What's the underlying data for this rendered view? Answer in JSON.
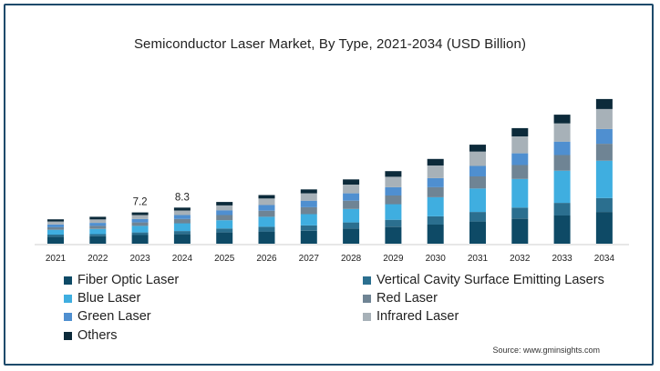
{
  "chart_data": {
    "type": "bar",
    "stacked": true,
    "title": "Semiconductor Laser Market, By Type, 2021-2034 (USD Billion)",
    "categories": [
      "2021",
      "2022",
      "2023",
      "2024",
      "2025",
      "2026",
      "2027",
      "2028",
      "2029",
      "2030",
      "2031",
      "2032",
      "2033",
      "2034"
    ],
    "series": [
      {
        "name": "Fiber Optic Laser",
        "color": "#0e4a66",
        "values": [
          1.6,
          1.7,
          2.0,
          2.2,
          2.6,
          2.8,
          3.0,
          3.5,
          3.9,
          4.4,
          5.1,
          5.8,
          6.5,
          7.3
        ]
      },
      {
        "name": "Vertical Cavity Surface Emitting Lasers",
        "color": "#2b6f8f",
        "values": [
          0.5,
          0.5,
          0.6,
          0.7,
          0.9,
          1.1,
          1.2,
          1.4,
          1.6,
          1.9,
          2.2,
          2.5,
          2.9,
          3.2
        ]
      },
      {
        "name": "Blue Laser",
        "color": "#3faee0",
        "values": [
          1.1,
          1.2,
          1.5,
          1.8,
          1.9,
          2.3,
          2.6,
          3.1,
          3.6,
          4.4,
          5.4,
          6.6,
          7.4,
          8.6
        ]
      },
      {
        "name": "Red Laser",
        "color": "#6f8494",
        "values": [
          0.6,
          0.7,
          0.8,
          1.0,
          1.2,
          1.4,
          1.6,
          1.9,
          2.0,
          2.3,
          2.8,
          3.2,
          3.6,
          3.9
        ]
      },
      {
        "name": "Green Laser",
        "color": "#4f8fd0",
        "values": [
          0.6,
          0.7,
          0.8,
          0.9,
          1.1,
          1.3,
          1.5,
          1.7,
          1.9,
          2.1,
          2.4,
          2.7,
          3.1,
          3.4
        ]
      },
      {
        "name": "Infrared Laser",
        "color": "#a7b1b8",
        "values": [
          0.7,
          0.8,
          0.9,
          1.0,
          1.1,
          1.5,
          1.7,
          2.0,
          2.4,
          2.9,
          3.3,
          3.9,
          4.2,
          4.6
        ]
      },
      {
        "name": "Others",
        "color": "#0c2a3a",
        "values": [
          0.5,
          0.6,
          0.6,
          0.7,
          0.8,
          0.8,
          0.9,
          1.2,
          1.3,
          1.5,
          1.6,
          1.9,
          2.0,
          2.3
        ]
      }
    ],
    "data_labels": [
      {
        "category": "2023",
        "label": "7.2"
      },
      {
        "category": "2024",
        "label": "8.3"
      }
    ],
    "ylim": [
      0,
      36
    ],
    "legend_position": "bottom",
    "grid": false
  },
  "legend_layout": "two-columns",
  "source": "Source: www.gminsights.com"
}
